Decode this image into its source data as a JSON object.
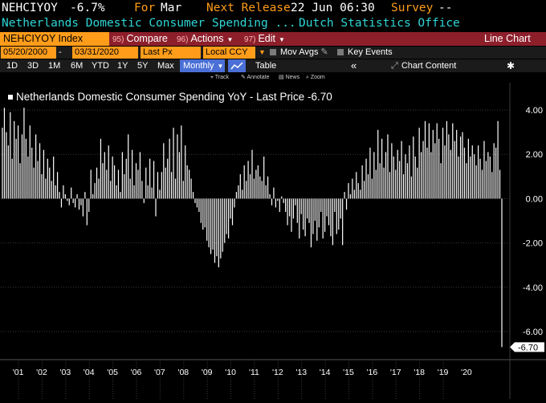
{
  "header": {
    "ticker": "NEHCIYOY",
    "value": "-6.7%",
    "for_label": "For",
    "period": "Mar",
    "next_release_label": "Next Release",
    "next_release": "22 Jun 06:30",
    "survey_label": "Survey",
    "survey": "--",
    "description": "Netherlands Domestic Consumer Spending ...",
    "source": "Dutch Statistics Office"
  },
  "toolbar": {
    "security": "NEHCIYOY Index",
    "compare_num": "95)",
    "compare": "Compare",
    "actions_num": "96)",
    "actions": "Actions",
    "edit_num": "97)",
    "edit": "Edit",
    "chart_type": "Line Chart"
  },
  "daterow": {
    "start_date": "05/20/2000",
    "separator": "-",
    "end_date": "03/31/2020",
    "field": "Last Px",
    "currency": "Local CCY",
    "mov_avgs": "Mov Avgs",
    "key_events": "Key Events"
  },
  "periods": {
    "items": [
      "1D",
      "3D",
      "1M",
      "6M",
      "YTD",
      "1Y",
      "5Y",
      "Max"
    ],
    "frequency": "Monthly",
    "table": "Table",
    "collapse": "«",
    "chart_content": "Chart Content",
    "settings_icon": "gear-icon"
  },
  "annotations": {
    "track": "Track",
    "annotate": "Annotate",
    "news": "News",
    "zoom": "Zoom"
  },
  "colors": {
    "bars": "#ffffff",
    "background": "#000000",
    "ticker_box": "#ff9c1a",
    "toolbar": "#8d1f2b",
    "description": "#2fd6d6"
  },
  "chart_data": {
    "type": "bar",
    "title": "Netherlands Domestic Consumer Spending YoY - Last Price -6.70",
    "last_value_label": "-6.70",
    "ylim": [
      -7,
      4.5
    ],
    "y_ticks": [
      4,
      2,
      0,
      -2,
      -4,
      -6
    ],
    "y_tick_labels": [
      "4.00",
      "2.00",
      "0.00",
      "-2.00",
      "-4.00",
      "-6.00"
    ],
    "x_tick_labels": [
      "'01",
      "'02",
      "'03",
      "'04",
      "'05",
      "'06",
      "'07",
      "'08",
      "'09",
      "'10",
      "'11",
      "'12",
      "'13",
      "'14",
      "'15",
      "'16",
      "'17",
      "'18",
      "'19",
      "'20"
    ],
    "grid": true,
    "frequency": "monthly",
    "start": "2000-05",
    "end": "2020-03",
    "values": [
      3.2,
      4.1,
      3.0,
      2.4,
      3.9,
      1.8,
      3.5,
      2.7,
      3.3,
      1.6,
      2.9,
      4.1,
      2.7,
      1.9,
      3.3,
      2.3,
      1.4,
      2.9,
      1.7,
      2.5,
      1.1,
      2.2,
      0.9,
      1.8,
      1.4,
      0.8,
      1.9,
      0.6,
      1.2,
      0.3,
      -0.4,
      0.6,
      0.2,
      -0.1,
      -0.3,
      0.5,
      -0.2,
      -0.4,
      0.2,
      -0.5,
      -0.3,
      -0.8,
      0.3,
      -1.2,
      -0.6,
      1.3,
      0.2,
      0.7,
      1.4,
      0.9,
      2.7,
      1.6,
      2.1,
      1.3,
      2.4,
      0.8,
      1.9,
      1.5,
      0.6,
      1.3,
      0.3,
      2.1,
      1.1,
      1.8,
      2.9,
      0.9,
      2.2,
      0.6,
      1.6,
      1.3,
      2.1,
      0.8,
      -0.2,
      1.4,
      0.6,
      1.8,
      0.5,
      1.7,
      -0.8,
      1.2,
      0.4,
      1.2,
      2.5,
      1.4,
      1.8,
      2.7,
      1.2,
      3.2,
      0.9,
      2.9,
      2.1,
      3.3,
      0.8,
      2.4,
      1.5,
      1.3,
      0.9,
      0.3,
      -0.2,
      -0.4,
      -0.6,
      -1.1,
      -1.4,
      -1.3,
      -1.9,
      -2.2,
      -2.5,
      -2.3,
      -2.9,
      -2.6,
      -3.1,
      -2.7,
      -2.4,
      -2.0,
      -1.6,
      -1.8,
      -0.9,
      -1.2,
      -0.4,
      0.3,
      0.6,
      1.1,
      0.4,
      1.5,
      0.8,
      1.7,
      1.1,
      2.2,
      0.9,
      1.3,
      1.5,
      1.0,
      0.8,
      1.9,
      0.6,
      1.0,
      0.2,
      -0.3,
      0.5,
      -0.4,
      -0.1,
      -0.6,
      0.1,
      -0.2,
      -0.6,
      -1.2,
      -0.8,
      -1.5,
      -0.9,
      -0.3,
      -1.1,
      -1.8,
      -0.7,
      -1.4,
      -1.7,
      -0.9,
      -1.1,
      -2.2,
      -1.6,
      -1.0,
      -1.9,
      -1.3,
      -0.6,
      -1.8,
      -1.5,
      -0.8,
      -1.2,
      -1.7,
      -2.1,
      -0.6,
      -1.6,
      -1.4,
      -0.9,
      -2.1,
      0.3,
      -0.5,
      0.7,
      0.2,
      0.9,
      0.4,
      1.2,
      0.7,
      0.4,
      1.5,
      0.8,
      1.8,
      1.1,
      2.3,
      0.9,
      2.1,
      1.3,
      3.1,
      1.6,
      2.7,
      1.4,
      2.1,
      2.9,
      1.2,
      2.5,
      1.9,
      1.3,
      2.2,
      1.7,
      2.6,
      1.1,
      2.0,
      1.6,
      2.4,
      1.0,
      2.8,
      1.9,
      1.4,
      3.2,
      2.1,
      2.6,
      3.5,
      2.3,
      3.4,
      2.1,
      3.1,
      2.5,
      3.4,
      2.7,
      1.6,
      3.2,
      2.4,
      3.5,
      2.9,
      2.2,
      3.4,
      2.6,
      3.1,
      1.9,
      2.8,
      3.0,
      2.3,
      1.6,
      2.7,
      1.9,
      2.4,
      2.0,
      1.5,
      2.4,
      1.8,
      1.3,
      2.6,
      1.7,
      2.1,
      1.9,
      1.2,
      2.5,
      2.3,
      3.5,
      1.3,
      -6.7
    ]
  }
}
